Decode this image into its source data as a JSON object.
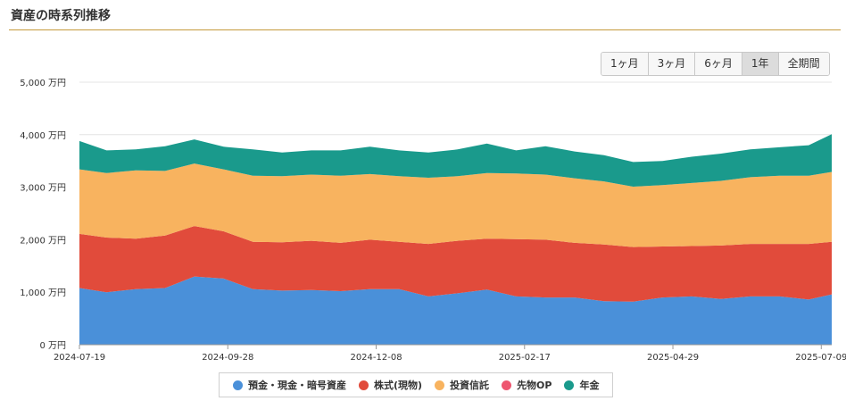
{
  "title": "資産の時系列推移",
  "range_buttons": [
    {
      "label": "1ヶ月",
      "active": false
    },
    {
      "label": "3ヶ月",
      "active": false
    },
    {
      "label": "6ヶ月",
      "active": false
    },
    {
      "label": "1年",
      "active": true
    },
    {
      "label": "全期間",
      "active": false
    }
  ],
  "chart_data": {
    "type": "area",
    "stacked": true,
    "y_unit": "万円",
    "ylim": [
      0,
      5000
    ],
    "yticks": [
      "0 万円",
      "1,000 万円",
      "2,000 万円",
      "3,000 万円",
      "4,000 万円",
      "5,000 万円"
    ],
    "xlim": [
      "2024-07-19",
      "2025-07-14"
    ],
    "xticks": [
      "2024-07-19",
      "2024-09-28",
      "2024-12-08",
      "2025-02-17",
      "2025-04-29",
      "2025-07-09"
    ],
    "grid": true,
    "legend_position": "bottom",
    "x": [
      "2024-07-19",
      "2024-08-01",
      "2024-08-15",
      "2024-08-29",
      "2024-09-12",
      "2024-09-26",
      "2024-10-10",
      "2024-10-24",
      "2024-11-07",
      "2024-11-21",
      "2024-12-05",
      "2024-12-19",
      "2025-01-02",
      "2025-01-16",
      "2025-01-30",
      "2025-02-13",
      "2025-02-27",
      "2025-03-13",
      "2025-03-27",
      "2025-04-10",
      "2025-04-24",
      "2025-05-08",
      "2025-05-22",
      "2025-06-05",
      "2025-06-19",
      "2025-07-03",
      "2025-07-14"
    ],
    "series": [
      {
        "name": "預金・現金・暗号資産",
        "color": "#4a90d9",
        "values": [
          1080,
          1000,
          1060,
          1080,
          1300,
          1260,
          1060,
          1030,
          1040,
          1020,
          1060,
          1060,
          920,
          980,
          1050,
          920,
          900,
          900,
          830,
          820,
          900,
          920,
          870,
          920,
          920,
          860,
          960
        ]
      },
      {
        "name": "株式(現物)",
        "color": "#e14b3b",
        "values": [
          1030,
          1040,
          960,
          1000,
          960,
          900,
          900,
          920,
          940,
          920,
          940,
          900,
          1000,
          1000,
          970,
          1090,
          1100,
          1040,
          1080,
          1040,
          970,
          960,
          1020,
          1000,
          1000,
          1060,
          1000
        ]
      },
      {
        "name": "投資信託",
        "color": "#f8b35f",
        "values": [
          1230,
          1230,
          1300,
          1230,
          1190,
          1180,
          1260,
          1260,
          1260,
          1280,
          1250,
          1250,
          1260,
          1230,
          1250,
          1250,
          1240,
          1230,
          1200,
          1150,
          1170,
          1200,
          1230,
          1270,
          1300,
          1300,
          1330
        ]
      },
      {
        "name": "先物OP",
        "color": "#ee5670",
        "values": [
          0,
          0,
          0,
          0,
          0,
          0,
          0,
          0,
          0,
          0,
          0,
          0,
          0,
          0,
          0,
          0,
          0,
          0,
          0,
          0,
          0,
          0,
          0,
          0,
          0,
          0,
          0
        ]
      },
      {
        "name": "年金",
        "color": "#1a9a8c",
        "values": [
          540,
          430,
          400,
          470,
          460,
          430,
          500,
          450,
          460,
          480,
          520,
          490,
          480,
          510,
          560,
          440,
          540,
          510,
          500,
          470,
          460,
          500,
          520,
          530,
          540,
          580,
          720
        ]
      }
    ]
  }
}
